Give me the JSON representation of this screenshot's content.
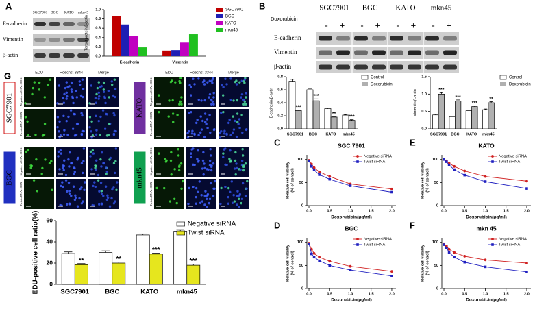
{
  "figure": {
    "panel_letters": [
      "A",
      "B",
      "C",
      "D",
      "E",
      "F",
      "G"
    ],
    "blot_a": {
      "columns": [
        "SGC7901",
        "BGC",
        "KATO",
        "mkn45"
      ],
      "rows": [
        "E-cadherin",
        "Vimentin",
        "β-actin"
      ]
    },
    "blot_b": {
      "columns": [
        "SGC7901",
        "BGC",
        "KATO",
        "mkn45"
      ],
      "treatment": "Doxorubicin",
      "signs": [
        "-",
        "+",
        "-",
        "+",
        "-",
        "+",
        "-",
        "+"
      ],
      "rows": [
        "E-cadherin",
        "Vimentin",
        "β-actin"
      ]
    },
    "microscopy": {
      "channels": [
        "EDU",
        "Hoechst 3344",
        "Merge"
      ],
      "cell_lines": [
        "SGC7901",
        "BGC",
        "KATO",
        "mkn45"
      ],
      "conditions": [
        "Negative siRNA +DOX",
        "Twist siRNA +DOX"
      ]
    }
  },
  "chart_data": [
    {
      "type": "bar",
      "ylabel": "Target protein/β-actin",
      "categories": [
        "E-cadherin",
        "Vimentin"
      ],
      "series": [
        {
          "name": "SGC7901",
          "color": "#c00000",
          "values": [
            0.86,
            0.12
          ]
        },
        {
          "name": "BGC",
          "color": "#1f1fb4",
          "values": [
            0.68,
            0.13
          ]
        },
        {
          "name": "KATO",
          "color": "#c000c0",
          "values": [
            0.43,
            0.29
          ]
        },
        {
          "name": "mkn45",
          "color": "#20c020",
          "values": [
            0.19,
            0.47
          ]
        }
      ],
      "ylim": [
        0,
        1
      ],
      "yticks": [
        {
          "value": 0,
          "label": "0.0"
        },
        0.2,
        0.4,
        0.6,
        0.8,
        {
          "value": 1,
          "label": "1.0"
        }
      ],
      "legend": "right"
    },
    {
      "type": "bar",
      "ylabel": "E-cadherin/β-actin",
      "categories": [
        "SGC7901",
        "BGC",
        "KATO",
        "mkn45"
      ],
      "series": [
        {
          "name": "Control",
          "color": "#ffffff",
          "values": [
            0.73,
            0.6,
            0.31,
            0.21
          ],
          "errors": [
            0.03,
            0.02,
            0.01,
            0.01
          ]
        },
        {
          "name": "Doxorubicin",
          "color": "#b0b0b0",
          "values": [
            0.28,
            0.43,
            0.18,
            0.13
          ],
          "errors": [
            0.01,
            0.03,
            0.01,
            0.01
          ],
          "annotations": [
            "***",
            "***",
            "**",
            "***"
          ]
        }
      ],
      "ylim": [
        0,
        0.8
      ],
      "yticks": [
        {
          "value": 0,
          "label": "0.0"
        },
        0.2,
        0.4,
        0.6,
        0.8
      ],
      "legend": "right"
    },
    {
      "type": "bar",
      "ylabel": "Vimentin/β-actin",
      "categories": [
        "SGC7901",
        "BGC",
        "KATO",
        "mkn45"
      ],
      "series": [
        {
          "name": "Control",
          "color": "#ffffff",
          "values": [
            0.4,
            0.35,
            0.52,
            0.55
          ],
          "errors": [
            0.02,
            0.01,
            0.02,
            0.02
          ]
        },
        {
          "name": "Doxorubicin",
          "color": "#b0b0b0",
          "values": [
            1.0,
            0.8,
            0.64,
            0.75
          ],
          "errors": [
            0.04,
            0.03,
            0.02,
            0.03
          ],
          "annotations": [
            "***",
            "***",
            "***",
            "**"
          ]
        }
      ],
      "ylim": [
        0,
        1.5
      ],
      "yticks": [
        {
          "value": 0,
          "label": "0.0"
        },
        0.5,
        {
          "value": 1,
          "label": "1.0"
        },
        1.5
      ],
      "legend": "right"
    },
    {
      "type": "bar",
      "ylabel": "EDU-positive cell ratio(%)",
      "categories": [
        "SGC7901",
        "BGC",
        "KATO",
        "mkn45"
      ],
      "series": [
        {
          "name": "Negative siRNA",
          "color": "#ffffff",
          "values": [
            29,
            30,
            46.5,
            50
          ],
          "errors": [
            1.5,
            1.5,
            1,
            1.5
          ]
        },
        {
          "name": "Twist siRNA",
          "color": "#e6e61e",
          "values": [
            18.5,
            20,
            28.5,
            18
          ],
          "errors": [
            1,
            1,
            0.8,
            1
          ],
          "annotations": [
            "**",
            "**",
            "***",
            "***"
          ]
        }
      ],
      "ylim": [
        0,
        60
      ],
      "yticks": [
        0,
        20,
        40,
        60
      ],
      "legend": "top-right"
    },
    {
      "type": "line",
      "title": "SGC 7901",
      "xlabel": "Doxorubicin(μg/ml)",
      "ylabel": [
        "Relative cell viability",
        "(% of control)"
      ],
      "x": [
        0,
        0.0625,
        0.125,
        0.25,
        0.5,
        1,
        2
      ],
      "series": [
        {
          "name": "Negative siRNA",
          "color": "#d02020",
          "marker": "circle",
          "values": [
            98,
            90,
            82,
            73,
            63,
            47,
            36
          ]
        },
        {
          "name": "Twist siRNA",
          "color": "#2020c0",
          "marker": "square",
          "values": [
            97,
            85,
            77,
            67,
            57,
            43,
            29
          ]
        }
      ],
      "xlim": [
        -0.05,
        2.1
      ],
      "xticks": [
        {
          "value": 0,
          "label": "0.0"
        },
        0.5,
        {
          "value": 1,
          "label": "1.0"
        },
        1.5,
        {
          "value": 2,
          "label": "2.0"
        }
      ],
      "ylim": [
        0,
        110
      ],
      "yticks": [
        0,
        50,
        100
      ],
      "legend": "top-right"
    },
    {
      "type": "line",
      "title": "BGC",
      "xlabel": "Doxorubicin(μg/ml)",
      "ylabel": [
        "Relative cell viability",
        "(% of control)"
      ],
      "x": [
        0,
        0.0625,
        0.125,
        0.25,
        0.5,
        1,
        2
      ],
      "series": [
        {
          "name": "Negative siRNA",
          "color": "#d02020",
          "marker": "circle",
          "values": [
            98,
            85,
            76,
            68,
            59,
            48,
            37
          ]
        },
        {
          "name": "Twist siRNA",
          "color": "#2020c0",
          "marker": "square",
          "values": [
            97,
            75,
            68,
            60,
            50,
            40,
            27
          ]
        }
      ],
      "xlim": [
        -0.05,
        2.1
      ],
      "xticks": [
        {
          "value": 0,
          "label": "0.0"
        },
        0.5,
        {
          "value": 1,
          "label": "1.0"
        },
        1.5,
        {
          "value": 2,
          "label": "2.0"
        }
      ],
      "ylim": [
        0,
        110
      ],
      "yticks": [
        0,
        50,
        100
      ],
      "legend": "top-right"
    },
    {
      "type": "line",
      "title": "KATO",
      "xlabel": "Doxorubicin(μg/ml)",
      "ylabel": [
        "Relative cell viability",
        "(% of control)"
      ],
      "x": [
        0,
        0.0625,
        0.125,
        0.25,
        0.5,
        1,
        2
      ],
      "series": [
        {
          "name": "Negative siRNA",
          "color": "#d02020",
          "marker": "circle",
          "values": [
            100,
            97,
            92,
            85,
            75,
            63,
            53
          ]
        },
        {
          "name": "Twist siRNA",
          "color": "#2020c0",
          "marker": "square",
          "values": [
            100,
            95,
            88,
            78,
            66,
            52,
            37
          ]
        }
      ],
      "xlim": [
        -0.05,
        2.1
      ],
      "xticks": [
        {
          "value": 0,
          "label": "0.0"
        },
        0.5,
        {
          "value": 1,
          "label": "1.0"
        },
        1.5,
        {
          "value": 2,
          "label": "2.0"
        }
      ],
      "ylim": [
        0,
        110
      ],
      "yticks": [
        0,
        50,
        100
      ],
      "legend": "top-right"
    },
    {
      "type": "line",
      "title": "mkn 45",
      "xlabel": "Doxorubicin(μg/ml)",
      "ylabel": [
        "Relative cell viability",
        "(% of control)"
      ],
      "x": [
        0,
        0.0625,
        0.125,
        0.25,
        0.5,
        1,
        2
      ],
      "series": [
        {
          "name": "Negative siRNA",
          "color": "#d02020",
          "marker": "circle",
          "values": [
            97,
            92,
            85,
            78,
            70,
            62,
            55
          ]
        },
        {
          "name": "Twist siRNA",
          "color": "#2020c0",
          "marker": "square",
          "values": [
            95,
            88,
            78,
            68,
            57,
            47,
            36
          ]
        }
      ],
      "xlim": [
        -0.05,
        2.1
      ],
      "xticks": [
        {
          "value": 0,
          "label": "0.0"
        },
        0.5,
        {
          "value": 1,
          "label": "1.0"
        },
        1.5,
        {
          "value": 2,
          "label": "2.0"
        }
      ],
      "ylim": [
        0,
        110
      ],
      "yticks": [
        0,
        50,
        100
      ],
      "legend": "top-right"
    }
  ]
}
